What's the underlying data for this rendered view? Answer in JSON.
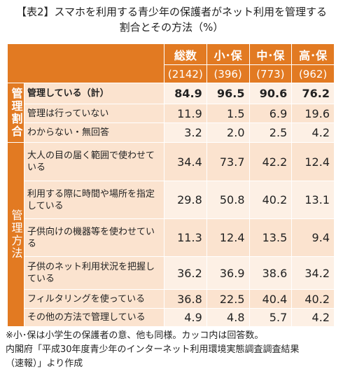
{
  "title": {
    "lines": [
      "【表2】スマホを利用する青少年の保護者がネット利用を管理する",
      "割合とその方法（%）"
    ]
  },
  "table": {
    "columns": [
      "総数",
      "小･保",
      "中･保",
      "高･保"
    ],
    "counts": [
      "(2142)",
      "(396)",
      "(773)",
      "(962)"
    ],
    "groups": [
      {
        "label": "管理割合",
        "rows": [
          {
            "label": "管理している（計）",
            "values": [
              "84.9",
              "96.5",
              "90.6",
              "76.2"
            ]
          },
          {
            "label": "管理は行っていない",
            "values": [
              "11.9",
              "1.5",
              "6.9",
              "19.6"
            ]
          },
          {
            "label": "わからない・無回答",
            "values": [
              "3.2",
              "2.0",
              "2.5",
              "4.2"
            ]
          }
        ]
      },
      {
        "label": "管理方法",
        "rows": [
          {
            "label": "大人の目の届く範囲で使わせている",
            "values": [
              "34.4",
              "73.7",
              "42.2",
              "12.4"
            ]
          },
          {
            "label": "利用する際に時間や場所を指定している",
            "values": [
              "29.8",
              "50.8",
              "40.2",
              "13.1"
            ]
          },
          {
            "label": "子供向けの機器等を使わせている",
            "values": [
              "11.3",
              "12.4",
              "13.5",
              "9.4"
            ]
          },
          {
            "label": "子供のネット利用状況を把握している",
            "values": [
              "36.2",
              "36.9",
              "38.6",
              "34.2"
            ]
          },
          {
            "label": "フィルタリングを使っている",
            "values": [
              "36.8",
              "22.5",
              "40.4",
              "40.2"
            ]
          },
          {
            "label": "その他の方法で管理している",
            "values": [
              "4.9",
              "4.8",
              "5.7",
              "4.2"
            ]
          }
        ]
      }
    ]
  },
  "notes": [
    "※小･保は小学生の保護者の意、他も同様。カッコ内は回答数。",
    "内閣府「平成30年度青少年のインターネット利用環境実態調査調査結果",
    "（速報）」より作成"
  ]
}
